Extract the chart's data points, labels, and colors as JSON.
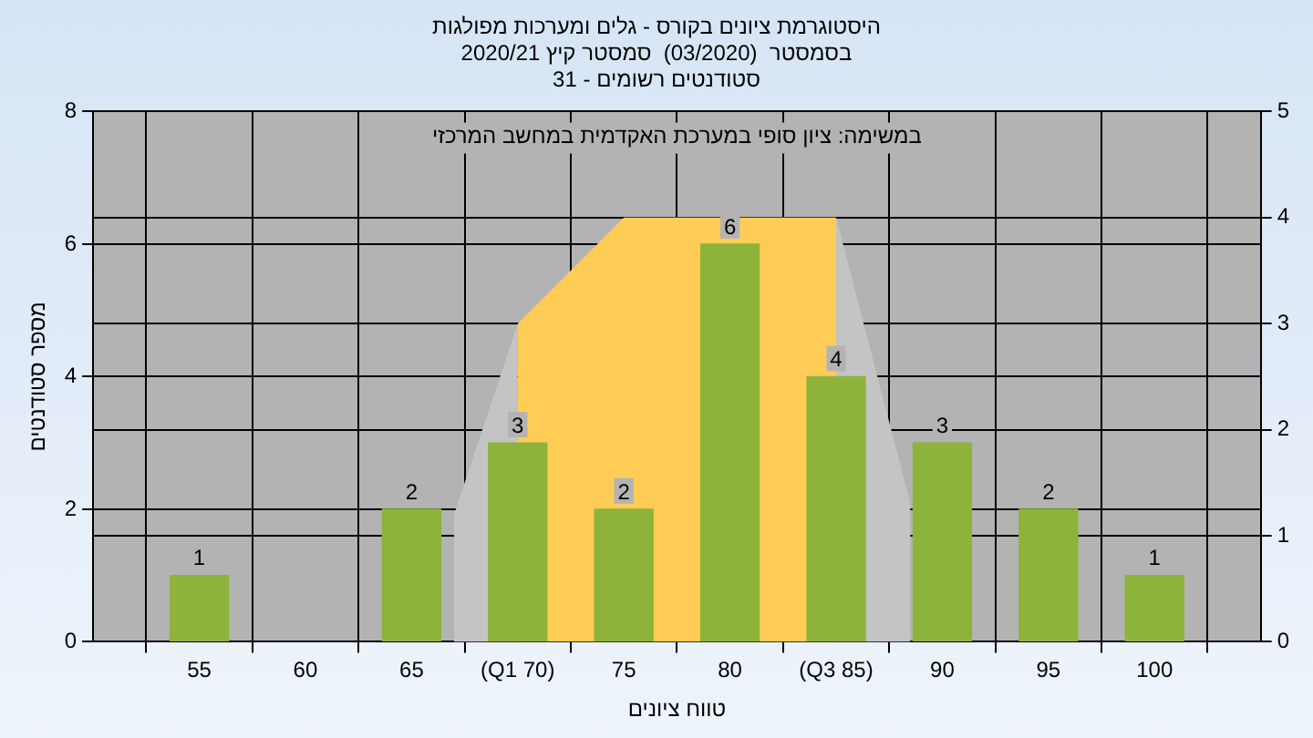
{
  "chart_data": {
    "type": "bar",
    "title": "היסטוגרמת ציונים בקורס - גלים ומערכות מפולגות",
    "subtitle": "בסמסטר  (03/2020)  סמסטר קיץ 2020/21\nסטודנטים רשומים - 31",
    "xlabel": "טווח ציונים",
    "ylabel": "מספר סטודנטים",
    "annotations": [
      "במשימה: ציון סופי במערכת האקדמית במחשב המרכזי"
    ],
    "x": [
      55,
      60,
      65,
      70,
      75,
      80,
      85,
      90,
      95,
      100
    ],
    "series": [
      {
        "color": "#8db33a",
        "values": [
          1,
          null,
          2,
          3,
          2,
          6,
          4,
          3,
          2,
          1
        ],
        "value_labels": [
          "1",
          null,
          "2",
          "3",
          "2",
          "6",
          "4",
          "3",
          "2",
          "1"
        ]
      },
      {
        "type": "area",
        "axis": "y2",
        "color": "#ffcc55",
        "x": [
          70,
          75,
          85
        ],
        "values": [
          3,
          4,
          4
        ]
      },
      {
        "type": "area",
        "axis": "y2",
        "color": "#c4c4c4",
        "x": [
          67,
          70
        ],
        "values": [
          1.2,
          3
        ]
      },
      {
        "type": "area",
        "axis": "y2",
        "color": "#c4c4c4",
        "x": [
          85,
          88.5
        ],
        "values": [
          4,
          1.3
        ]
      }
    ],
    "xlim": [
      50,
      105
    ],
    "xticks": [
      {
        "value": 50,
        "label": null
      },
      55,
      60,
      65,
      {
        "value": 70,
        "label": "(Q1 70)"
      },
      75,
      80,
      {
        "value": 85,
        "label": "(Q3 85)"
      },
      90,
      95,
      100,
      {
        "value": 105,
        "label": null
      }
    ],
    "ylim": [
      0,
      8
    ],
    "yticks": [
      0,
      2,
      4,
      6,
      8
    ],
    "y2lim": [
      0,
      5
    ],
    "y2ticks": [
      0,
      1,
      2,
      3,
      4,
      5
    ],
    "grid": true,
    "legend": false
  }
}
